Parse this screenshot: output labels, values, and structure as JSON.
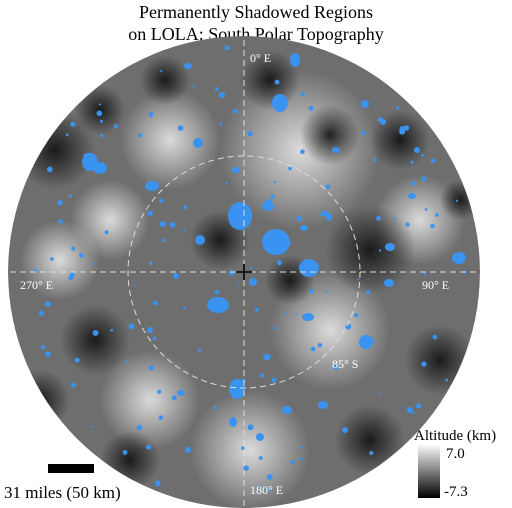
{
  "title": [
    "Permanently Shadowed Regions",
    "on LOLA: South Polar Topography"
  ],
  "map": {
    "longitude_labels": [
      "0° E",
      "90° E",
      "180° E",
      "270° E"
    ],
    "latitude_label": "85° S"
  },
  "scale_bar": "31 miles (50 km)",
  "colorbar": {
    "title": "Altitude (km)",
    "max_label": "7.0",
    "min_label": "-7.3"
  }
}
